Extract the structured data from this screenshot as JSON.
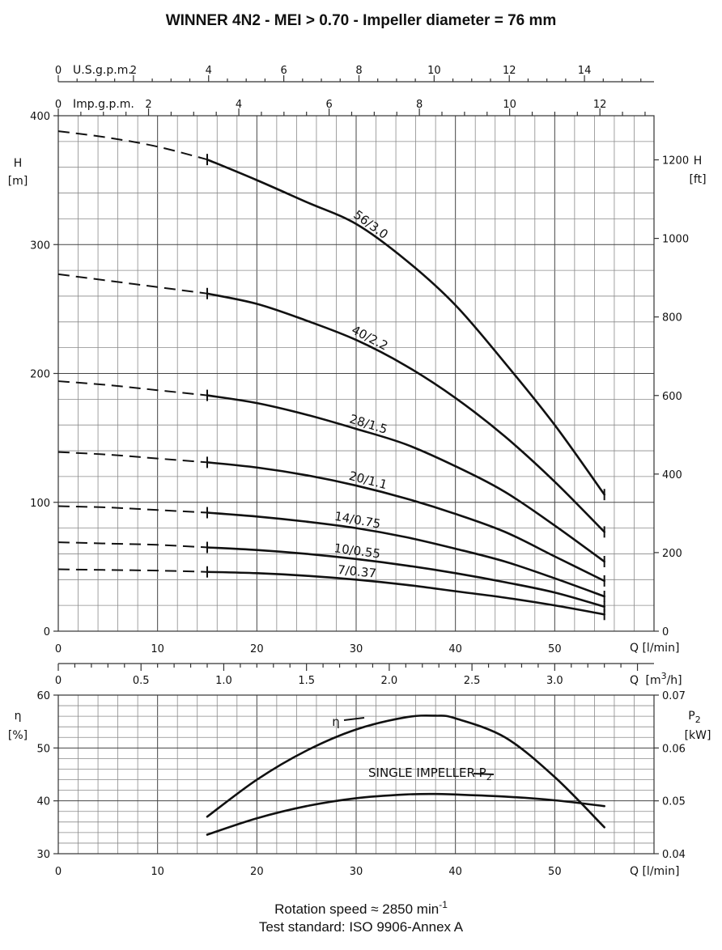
{
  "chart_data": [
    {
      "type": "line",
      "title": "WINNER 4N2 - MEI > 0.70 - Impeller diameter = 76 mm",
      "xlabel": "Q [l/min]",
      "ylabel_left": "H",
      "ylabel_left_unit": "[m]",
      "ylabel_right": "H",
      "ylabel_right_unit": "[ft]",
      "xlim": [
        0,
        60
      ],
      "ylim": [
        0,
        400
      ],
      "x_ticks": [
        "0",
        "10",
        "20",
        "30",
        "40",
        "50"
      ],
      "y_ticks": [
        "0",
        "100",
        "200",
        "300",
        "400"
      ],
      "y_right_ticks": [
        "0",
        "200",
        "400",
        "600",
        "800",
        "1000",
        "1200"
      ],
      "top_axis_usgpm": {
        "label": "U.S.g.p.m.",
        "ticks": [
          "0",
          "2",
          "4",
          "6",
          "8",
          "10",
          "12",
          "14"
        ]
      },
      "top_axis_impgpm": {
        "label": "Imp.g.p.m.",
        "ticks": [
          "0",
          "2",
          "4",
          "6",
          "8",
          "10",
          "12"
        ]
      },
      "bottom_axis_m3h": {
        "label_q": "Q",
        "label_unit": "[m",
        "label_sup": "3",
        "label_end": "/h]",
        "ticks": [
          "0",
          "0.5",
          "1.0",
          "1.5",
          "2.0",
          "2.5",
          "3.0"
        ]
      },
      "grid": true,
      "operating_range": [
        15,
        55
      ],
      "series": [
        {
          "name": "56/3.0",
          "label_text": "56/3.0",
          "x": [
            0,
            5,
            10,
            15,
            20,
            25,
            30,
            35,
            40,
            45,
            50,
            55
          ],
          "values": [
            388,
            383,
            376,
            366,
            350,
            333,
            316,
            288,
            253,
            208,
            160,
            106
          ]
        },
        {
          "name": "40/2.2",
          "label_text": "40/2.2",
          "x": [
            0,
            5,
            10,
            15,
            20,
            25,
            30,
            35,
            40,
            45,
            50,
            55
          ],
          "values": [
            277,
            272,
            267,
            262,
            254,
            241,
            226,
            206,
            181,
            151,
            116,
            77
          ]
        },
        {
          "name": "28/1.5",
          "label_text": "28/1.5",
          "x": [
            0,
            5,
            10,
            15,
            20,
            25,
            30,
            35,
            40,
            45,
            50,
            55
          ],
          "values": [
            194,
            191,
            187,
            183,
            177,
            168,
            157,
            145,
            128,
            108,
            82,
            54
          ]
        },
        {
          "name": "20/1.1",
          "label_text": "20/1.1",
          "x": [
            0,
            5,
            10,
            15,
            20,
            25,
            30,
            35,
            40,
            45,
            50,
            55
          ],
          "values": [
            139,
            137,
            134,
            131,
            127,
            121,
            113,
            103,
            91,
            77,
            58,
            39
          ]
        },
        {
          "name": "14/0.75",
          "label_text": "14/0.75",
          "x": [
            0,
            5,
            10,
            15,
            20,
            25,
            30,
            35,
            40,
            45,
            50,
            55
          ],
          "values": [
            97,
            96,
            94,
            92,
            89,
            85,
            80,
            73,
            64,
            54,
            41,
            27
          ]
        },
        {
          "name": "10/0.55",
          "label_text": "10/0.55",
          "x": [
            0,
            5,
            10,
            15,
            20,
            25,
            30,
            35,
            40,
            45,
            50,
            55
          ],
          "values": [
            69,
            68,
            67,
            65,
            63,
            60,
            56,
            51,
            45,
            38,
            30,
            19
          ]
        },
        {
          "name": "7/0.37",
          "label_text": "7/0.37",
          "x": [
            0,
            5,
            10,
            15,
            20,
            25,
            30,
            35,
            40,
            45,
            50,
            55
          ],
          "values": [
            48,
            47.5,
            47,
            46,
            45,
            43,
            40,
            36,
            31,
            26,
            20,
            13
          ]
        }
      ]
    },
    {
      "type": "line",
      "xlabel": "Q [l/min]",
      "ylabel_left": "η",
      "ylabel_left_unit": "[%]",
      "ylabel_right": "P",
      "ylabel_right_sub": "2",
      "ylabel_right_unit": "[kW]",
      "xlim": [
        0,
        60
      ],
      "ylim": [
        30,
        60
      ],
      "y_right_lim": [
        0.04,
        0.07
      ],
      "x_ticks": [
        "0",
        "10",
        "20",
        "30",
        "40",
        "50"
      ],
      "y_ticks": [
        "30",
        "40",
        "50",
        "60"
      ],
      "y_right_ticks": [
        "0.04",
        "0.05",
        "0.06",
        "0.07"
      ],
      "grid": true,
      "series": [
        {
          "name": "η",
          "label_text": "η",
          "axis": "left",
          "x": [
            15,
            20,
            25,
            30,
            35,
            38,
            40,
            45,
            50,
            55
          ],
          "values": [
            37,
            44,
            49.5,
            53.5,
            55.8,
            56.1,
            55.6,
            52,
            44.5,
            35
          ]
        },
        {
          "name": "SINGLE IMPELLER P2",
          "label_text": "SINGLE IMPELLER P",
          "label_sub": "2",
          "axis": "right",
          "x": [
            15,
            20,
            25,
            30,
            35,
            38,
            40,
            45,
            50,
            55
          ],
          "values": [
            0.0436,
            0.0467,
            0.049,
            0.0505,
            0.0512,
            0.0513,
            0.0512,
            0.0508,
            0.0501,
            0.049
          ]
        }
      ]
    }
  ],
  "footer": {
    "rotation_prefix": "Rotation speed ≈ 2850 min",
    "rotation_sup": "-1",
    "test_standard": "Test standard: ISO 9906-Annex A"
  }
}
